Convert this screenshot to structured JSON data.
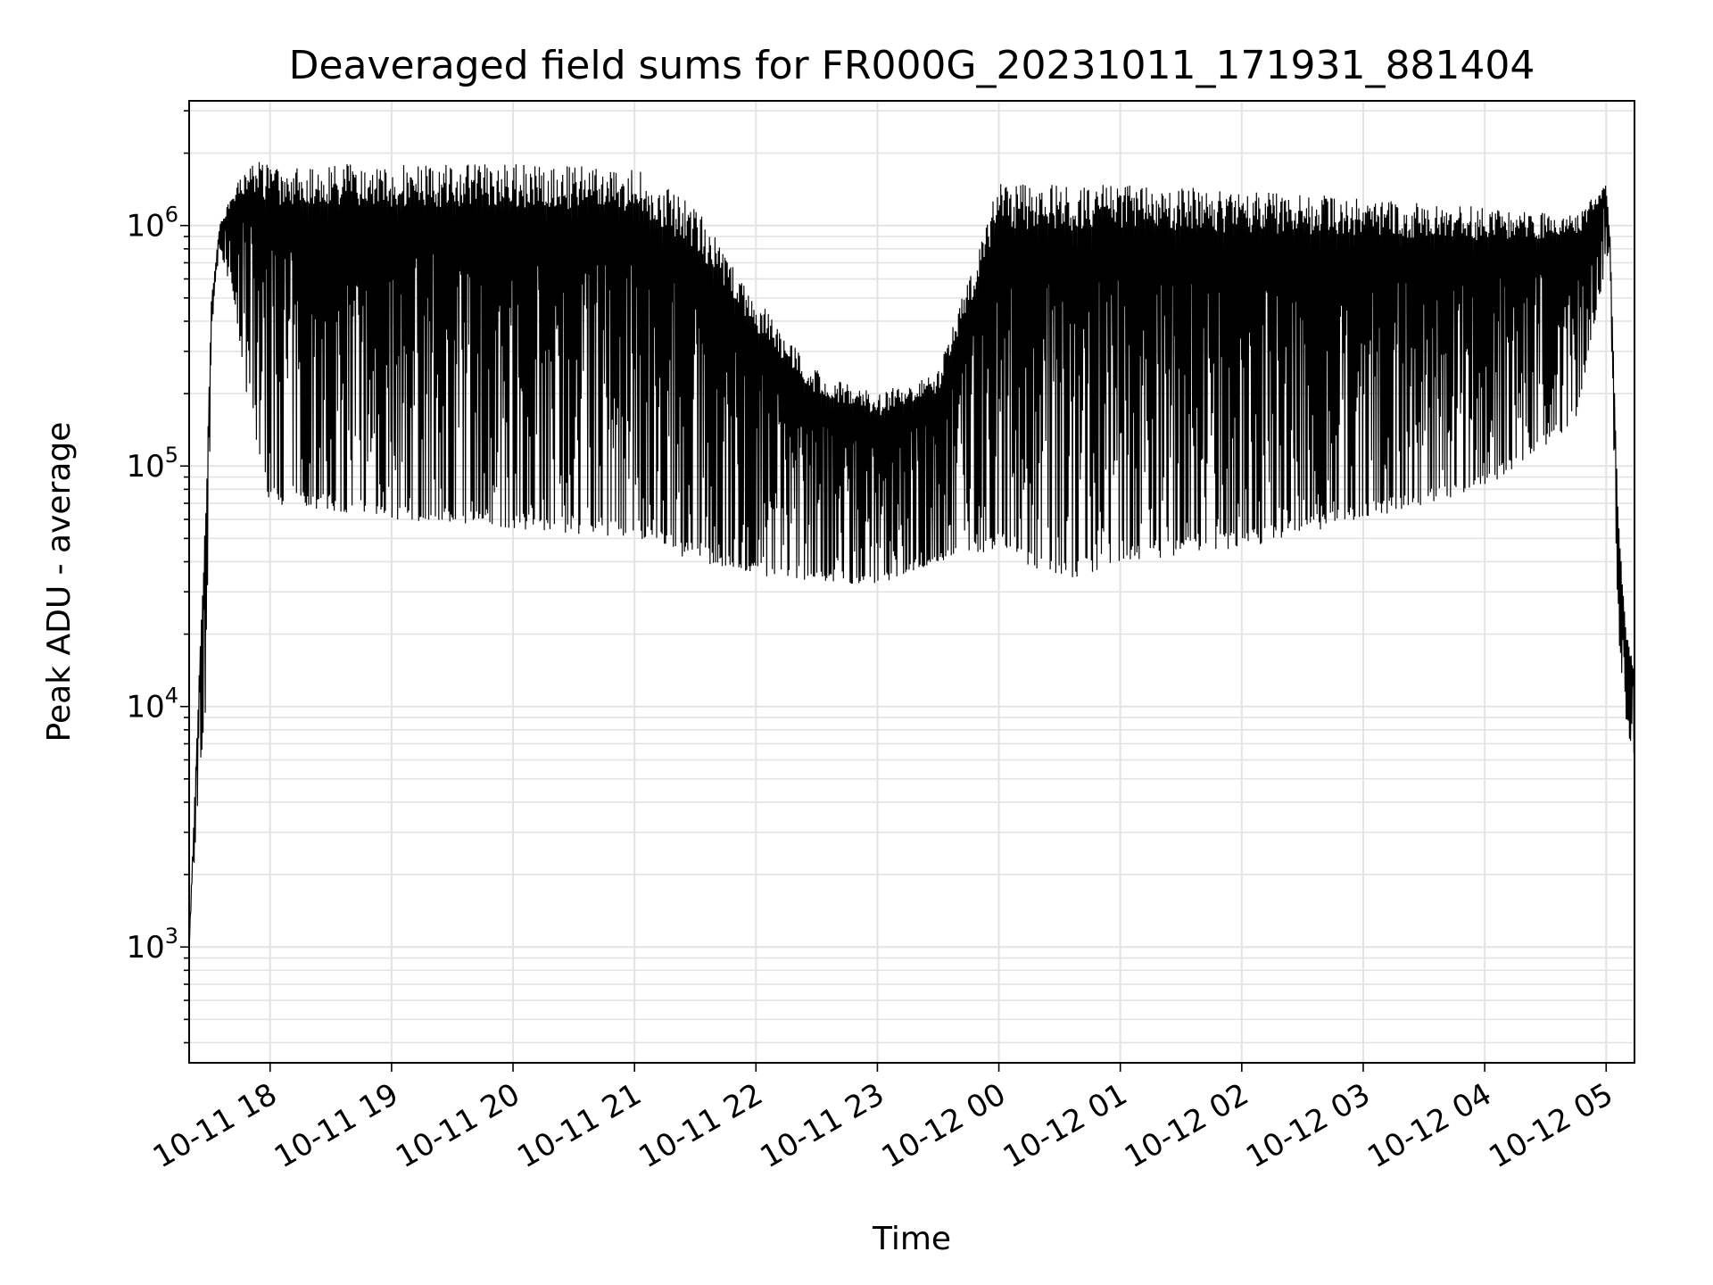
{
  "chart_data": {
    "type": "line",
    "title": "Deaveraged field sums for FR000G_20231011_171931_881404",
    "xlabel": "Time",
    "ylabel": "Peak ADU - average",
    "yscale": "log",
    "ylim": [
      330,
      3300000
    ],
    "xlim": [
      "2023-10-11 17:20",
      "2023-10-12 05:14"
    ],
    "grid": true,
    "grid_minor": true,
    "line_color": "#000000",
    "y_ticks": [
      {
        "value": 1000,
        "base": "10",
        "exp": "3"
      },
      {
        "value": 10000,
        "base": "10",
        "exp": "4"
      },
      {
        "value": 100000,
        "base": "10",
        "exp": "5"
      },
      {
        "value": 1000000,
        "base": "10",
        "exp": "6"
      }
    ],
    "x_ticks": [
      {
        "value": "2023-10-11 18:00",
        "label": "10-11 18"
      },
      {
        "value": "2023-10-11 19:00",
        "label": "10-11 19"
      },
      {
        "value": "2023-10-11 20:00",
        "label": "10-11 20"
      },
      {
        "value": "2023-10-11 21:00",
        "label": "10-11 21"
      },
      {
        "value": "2023-10-11 22:00",
        "label": "10-11 22"
      },
      {
        "value": "2023-10-11 23:00",
        "label": "10-11 23"
      },
      {
        "value": "2023-10-12 00:00",
        "label": "10-12 00"
      },
      {
        "value": "2023-10-12 01:00",
        "label": "10-12 01"
      },
      {
        "value": "2023-10-12 02:00",
        "label": "10-12 02"
      },
      {
        "value": "2023-10-12 03:00",
        "label": "10-12 03"
      },
      {
        "value": "2023-10-12 04:00",
        "label": "10-12 04"
      },
      {
        "value": "2023-10-12 05:00",
        "label": "10-12 05"
      }
    ],
    "series": [
      {
        "envelope": [
          {
            "x": "2023-10-11 17:20",
            "peak": 1000,
            "trough": 1000
          },
          {
            "x": "2023-10-11 17:25",
            "peak": 15000,
            "trough": 5000
          },
          {
            "x": "2023-10-11 17:28",
            "peak": 60000,
            "trough": 9000
          },
          {
            "x": "2023-10-11 17:31",
            "peak": 500000,
            "trough": 300000
          },
          {
            "x": "2023-10-11 17:35",
            "peak": 1000000,
            "trough": 800000
          },
          {
            "x": "2023-10-11 17:42",
            "peak": 1400000,
            "trough": 500000
          },
          {
            "x": "2023-10-11 17:50",
            "peak": 1900000,
            "trough": 150000
          },
          {
            "x": "2023-10-11 18:00",
            "peak": 1800000,
            "trough": 70000
          },
          {
            "x": "2023-10-11 19:00",
            "peak": 1800000,
            "trough": 60000
          },
          {
            "x": "2023-10-11 20:00",
            "peak": 1800000,
            "trough": 55000
          },
          {
            "x": "2023-10-11 21:00",
            "peak": 1750000,
            "trough": 50000
          },
          {
            "x": "2023-10-11 21:30",
            "peak": 1200000,
            "trough": 40000
          },
          {
            "x": "2023-10-11 22:00",
            "peak": 500000,
            "trough": 35000
          },
          {
            "x": "2023-10-11 22:30",
            "peak": 250000,
            "trough": 33000
          },
          {
            "x": "2023-10-11 23:00",
            "peak": 200000,
            "trough": 32000
          },
          {
            "x": "2023-10-11 23:30",
            "peak": 250000,
            "trough": 40000
          },
          {
            "x": "2023-10-12 00:00",
            "peak": 1500000,
            "trough": 45000
          },
          {
            "x": "2023-10-12 00:30",
            "peak": 1500000,
            "trough": 32000
          },
          {
            "x": "2023-10-12 01:00",
            "peak": 1500000,
            "trough": 40000
          },
          {
            "x": "2023-10-12 02:00",
            "peak": 1400000,
            "trough": 45000
          },
          {
            "x": "2023-10-12 03:00",
            "peak": 1300000,
            "trough": 60000
          },
          {
            "x": "2023-10-12 04:00",
            "peak": 1200000,
            "trough": 80000
          },
          {
            "x": "2023-10-12 04:45",
            "peak": 1100000,
            "trough": 150000
          },
          {
            "x": "2023-10-12 05:00",
            "peak": 1500000,
            "trough": 700000
          },
          {
            "x": "2023-10-12 05:02",
            "peak": 900000,
            "trough": 500000
          },
          {
            "x": "2023-10-12 05:06",
            "peak": 60000,
            "trough": 20000
          },
          {
            "x": "2023-10-12 05:10",
            "peak": 20000,
            "trough": 8000
          },
          {
            "x": "2023-10-12 05:14",
            "peak": 15000,
            "trough": 6000
          }
        ]
      }
    ]
  }
}
